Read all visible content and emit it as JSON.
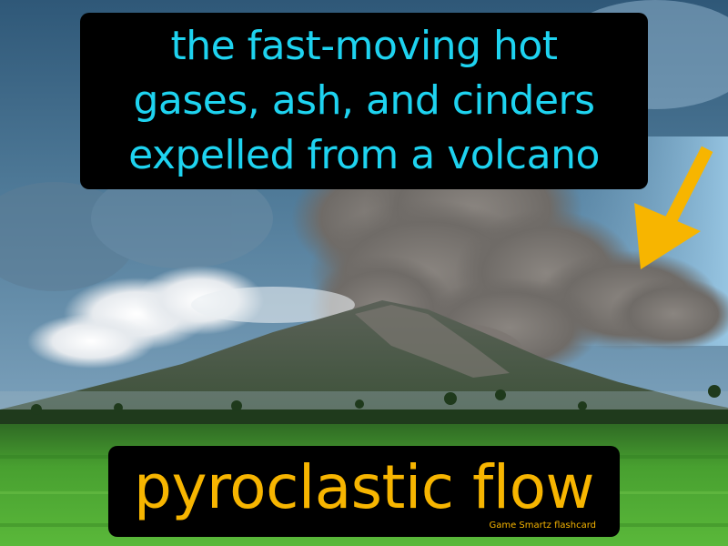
{
  "flashcard": {
    "definition_lines": [
      "the fast-moving hot",
      "gases, ash, and cinders",
      "expelled from a volcano"
    ],
    "term": "pyroclastic flow",
    "brand": "Game Smartz  flashcard"
  },
  "colors": {
    "definition_text": "#1ed3f0",
    "term_text": "#f7b500",
    "arrow": "#f7b500",
    "brand_text": "#f7b500",
    "box_background": "#000000"
  },
  "icons": {
    "pointer": "arrow-pointing-down-left"
  }
}
